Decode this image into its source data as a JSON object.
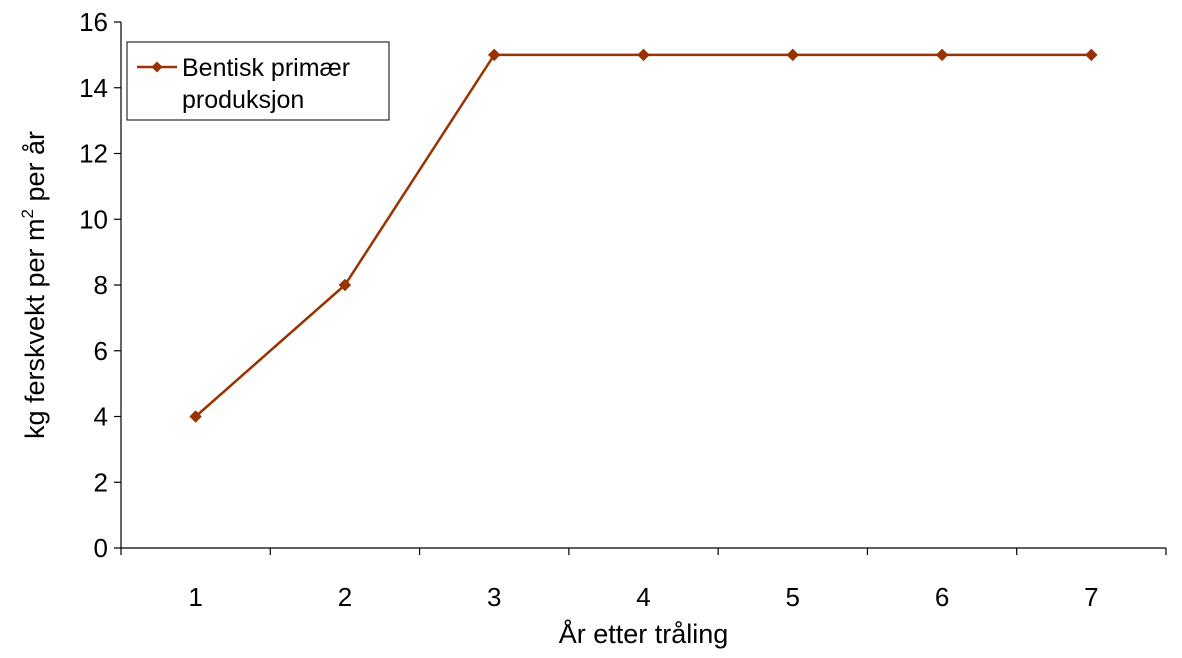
{
  "chart_data": {
    "type": "line",
    "title": "",
    "xlabel": "År etter tråling",
    "ylabel": {
      "main": "kg ferskvekt per m",
      "superscript": "2",
      "tail": " per år"
    },
    "categories": [
      "1",
      "2",
      "3",
      "4",
      "5",
      "6",
      "7"
    ],
    "series": [
      {
        "name": "Bentisk primær produksjon",
        "legend_lines": [
          "Bentisk primær",
          "produksjon"
        ],
        "values": [
          4,
          8,
          15,
          15,
          15,
          15,
          15
        ],
        "color": "#993300",
        "marker": "diamond"
      }
    ],
    "ylim": [
      0,
      16
    ],
    "yticks": [
      "0",
      "2",
      "4",
      "6",
      "8",
      "10",
      "12",
      "14",
      "16"
    ],
    "grid": false,
    "legend_position": "top-left"
  }
}
